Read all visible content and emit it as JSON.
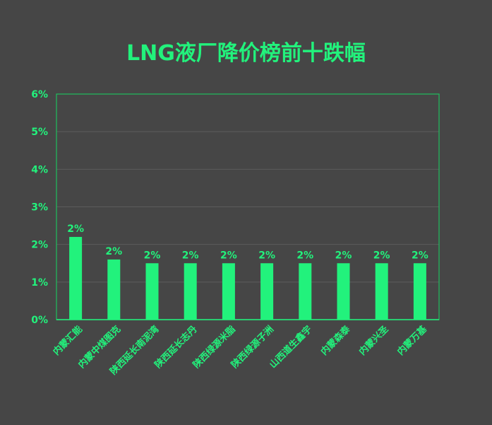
{
  "chart_data": {
    "type": "bar",
    "title": "LNG液厂降价榜前十跌幅",
    "categories": [
      "内蒙汇能",
      "内蒙中煤图克",
      "陕西延长南泥湾",
      "陕西延长志丹",
      "陕西绿源米脂",
      "陕西绿源子洲",
      "山西道生鑫宇",
      "内蒙森泰",
      "内蒙兴圣",
      "内蒙万基"
    ],
    "values": [
      2.2,
      1.6,
      1.5,
      1.5,
      1.5,
      1.5,
      1.5,
      1.5,
      1.5,
      1.5
    ],
    "data_labels": [
      "2%",
      "2%",
      "2%",
      "2%",
      "2%",
      "2%",
      "2%",
      "2%",
      "2%",
      "2%"
    ],
    "ylim": [
      0,
      6
    ],
    "yticks": [
      "0%",
      "1%",
      "2%",
      "3%",
      "4%",
      "5%",
      "6%"
    ],
    "xlabel": "",
    "ylabel": "",
    "grid": true,
    "legend": "none",
    "colors": {
      "bar": "#22f27c",
      "text": "#22f27c",
      "grid": "#5c5c5c",
      "frame": "#1fbe5e",
      "background": "#464646"
    }
  }
}
